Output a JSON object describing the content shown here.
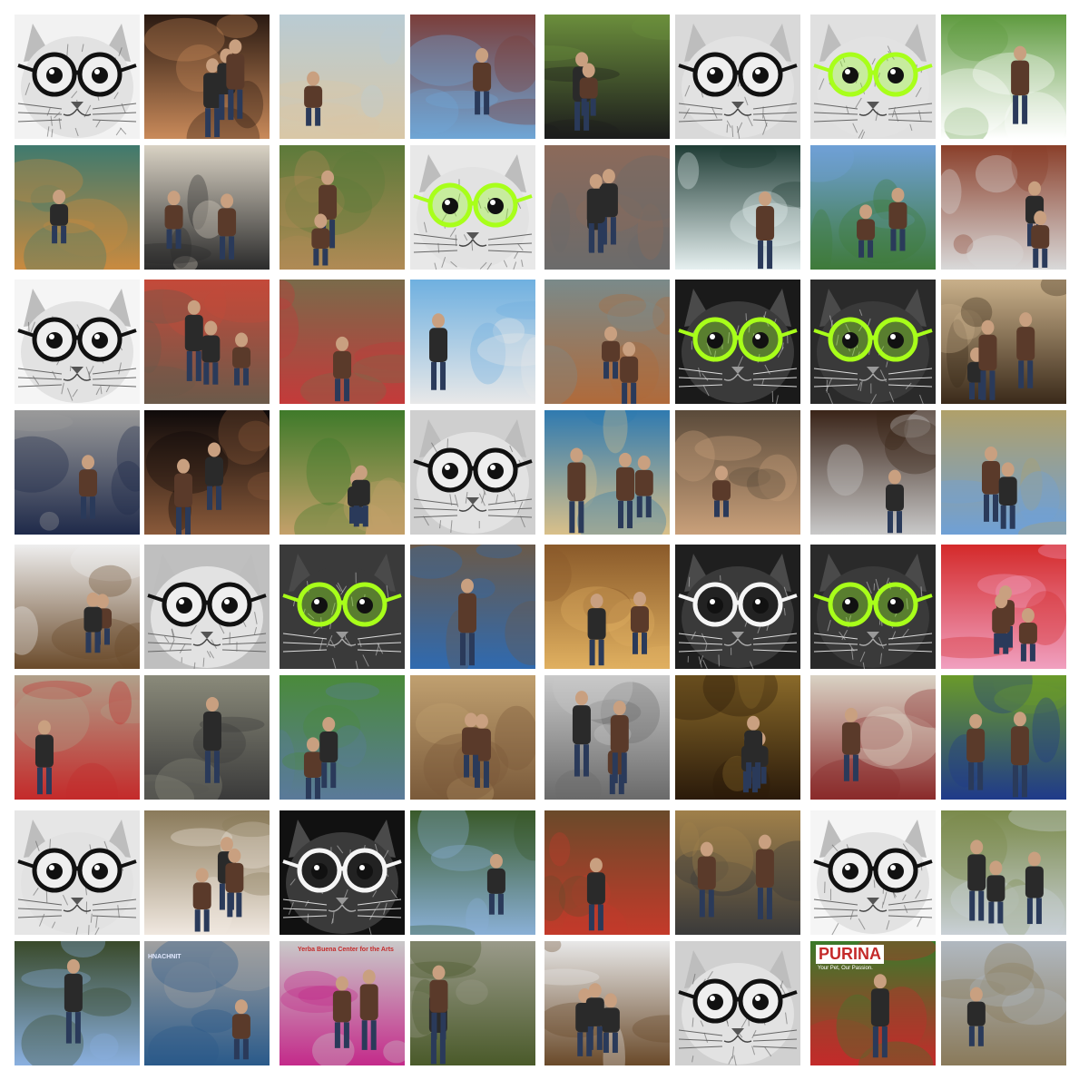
{
  "grid": {
    "rows": 8,
    "cols": 8,
    "background": "#ffffff"
  },
  "tiles": [
    {
      "kind": "cat",
      "scene": "cat-portrait",
      "glasses": "black",
      "colors": [
        "#f2f2f2",
        "#2b2b2b"
      ]
    },
    {
      "kind": "photo",
      "scene": "people-party-night",
      "colors": [
        "#2a1a12",
        "#c98a5a"
      ]
    },
    {
      "kind": "photo",
      "scene": "dog-running-beach",
      "colors": [
        "#b9cbd3",
        "#d9c7a6"
      ]
    },
    {
      "kind": "photo",
      "scene": "woman-and-boy-by-brick-wall",
      "colors": [
        "#7b3e3a",
        "#6fa6d6"
      ]
    },
    {
      "kind": "photo",
      "scene": "two-black-horses-on-grass",
      "colors": [
        "#6b8e3c",
        "#1c1c1c"
      ]
    },
    {
      "kind": "cat",
      "scene": "cat-portrait",
      "glasses": "black",
      "colors": [
        "#d9d9d9",
        "#2f2f2f"
      ]
    },
    {
      "kind": "cat",
      "scene": "cat-portrait",
      "glasses": "lime",
      "colors": [
        "#e0e0e0",
        "#9bff1a"
      ]
    },
    {
      "kind": "photo",
      "scene": "kids-soccer-goal",
      "colors": [
        "#5e9a3e",
        "#ffffff"
      ]
    },
    {
      "kind": "photo",
      "scene": "fluffy-dogs-on-blanket",
      "colors": [
        "#3f7a6e",
        "#c98a3f"
      ]
    },
    {
      "kind": "photo",
      "scene": "couple-on-street",
      "colors": [
        "#d9d2c4",
        "#2b2b2b"
      ]
    },
    {
      "kind": "photo",
      "scene": "football-team-practice",
      "colors": [
        "#5c7a3a",
        "#b08a55"
      ]
    },
    {
      "kind": "cat",
      "scene": "cat-portrait",
      "glasses": "lime",
      "colors": [
        "#e8e8e8",
        "#88ff00"
      ]
    },
    {
      "kind": "photo",
      "scene": "two-people-by-brick-building",
      "colors": [
        "#8c6a5a",
        "#6b6b6b"
      ]
    },
    {
      "kind": "photo",
      "scene": "wakeboarder-wave",
      "colors": [
        "#1f3c35",
        "#e6f0f0"
      ]
    },
    {
      "kind": "photo",
      "scene": "skateboarder-park",
      "colors": [
        "#6fa0d6",
        "#3f7a3a"
      ]
    },
    {
      "kind": "photo",
      "scene": "person-hairnet-mask",
      "colors": [
        "#8a3f2a",
        "#d9d9d9"
      ]
    },
    {
      "kind": "cat",
      "scene": "cat-portrait",
      "glasses": "black",
      "colors": [
        "#f5f5f5",
        "#1a1a1a"
      ]
    },
    {
      "kind": "photo",
      "scene": "carnival-street",
      "colors": [
        "#c44a3a",
        "#6b5a4a"
      ]
    },
    {
      "kind": "photo",
      "scene": "painter-at-easel",
      "colors": [
        "#7a6a4a",
        "#c43a3a"
      ]
    },
    {
      "kind": "photo",
      "scene": "climbing-wall-water",
      "colors": [
        "#6fb0e0",
        "#e8e8e8"
      ]
    },
    {
      "kind": "photo",
      "scene": "dog-in-surf",
      "colors": [
        "#7a8a8a",
        "#b06a3a"
      ]
    },
    {
      "kind": "cat",
      "scene": "cat-portrait",
      "glasses": "lime",
      "colors": [
        "#1a1a1a",
        "#aaff00"
      ]
    },
    {
      "kind": "cat",
      "scene": "cat-portrait",
      "glasses": "lime",
      "colors": [
        "#2a2a2a",
        "#9bff1a"
      ]
    },
    {
      "kind": "photo",
      "scene": "two-dogs-dirt",
      "colors": [
        "#c9b08a",
        "#3a2a1a"
      ]
    },
    {
      "kind": "photo",
      "scene": "man-walking-pavement",
      "colors": [
        "#9a9a9a",
        "#1f2a4a"
      ]
    },
    {
      "kind": "photo",
      "scene": "musician-stage",
      "colors": [
        "#0f0a0a",
        "#8a5a3a"
      ]
    },
    {
      "kind": "photo",
      "scene": "dog-with-stick-grass",
      "colors": [
        "#3f7a2a",
        "#c4a06a"
      ]
    },
    {
      "kind": "cat",
      "scene": "cat-portrait",
      "glasses": "black",
      "colors": [
        "#cfcfcf",
        "#202020"
      ]
    },
    {
      "kind": "photo",
      "scene": "wakeboarder-jump-lake",
      "colors": [
        "#2f7ab0",
        "#d9c08a"
      ]
    },
    {
      "kind": "photo",
      "scene": "bmx-indoor-ramp",
      "colors": [
        "#5a4a3a",
        "#c9a07a"
      ]
    },
    {
      "kind": "photo",
      "scene": "woman-smoking-handbag",
      "colors": [
        "#3a2418",
        "#c9c9c9"
      ]
    },
    {
      "kind": "photo",
      "scene": "football-kicking-field",
      "colors": [
        "#b0a06a",
        "#6fa0d6"
      ]
    },
    {
      "kind": "photo",
      "scene": "sled-dogs-snow",
      "colors": [
        "#eeeeee",
        "#6a4a2a"
      ]
    },
    {
      "kind": "cat",
      "scene": "cat-portrait",
      "glasses": "black",
      "colors": [
        "#bfbfbf",
        "#1a1a1a"
      ]
    },
    {
      "kind": "cat",
      "scene": "cat-portrait",
      "glasses": "lime",
      "colors": [
        "#3a3a3a",
        "#8aff2a"
      ]
    },
    {
      "kind": "photo",
      "scene": "crowd-woman-blue-top",
      "colors": [
        "#6a5a4a",
        "#2f6ab0"
      ]
    },
    {
      "kind": "photo",
      "scene": "cafe-interior",
      "colors": [
        "#8a5a2a",
        "#e0b060"
      ]
    },
    {
      "kind": "cat",
      "scene": "cat-portrait",
      "glasses": "white",
      "colors": [
        "#1f1f1f",
        "#ffffff"
      ]
    },
    {
      "kind": "cat",
      "scene": "cat-portrait",
      "glasses": "lime",
      "colors": [
        "#2a2a2a",
        "#aaff00"
      ]
    },
    {
      "kind": "photo",
      "scene": "child-on-red-slide",
      "colors": [
        "#d42a2a",
        "#f0a0c0"
      ]
    },
    {
      "kind": "photo",
      "scene": "street-bull-run",
      "colors": [
        "#b0a08a",
        "#c42a2a"
      ]
    },
    {
      "kind": "photo",
      "scene": "woman-walking-street",
      "colors": [
        "#8a8a7a",
        "#3a3a3a"
      ]
    },
    {
      "kind": "photo",
      "scene": "man-kneeling-with-fish",
      "colors": [
        "#4a8a3a",
        "#5a7a9a"
      ]
    },
    {
      "kind": "photo",
      "scene": "rock-climber",
      "colors": [
        "#c0a070",
        "#7a5a3a"
      ]
    },
    {
      "kind": "photo",
      "scene": "skateboarder-air",
      "colors": [
        "#c9c9c9",
        "#6a6a6a"
      ]
    },
    {
      "kind": "photo",
      "scene": "dogs-swimming-brown-water",
      "colors": [
        "#8a6a2a",
        "#2a1a0a"
      ]
    },
    {
      "kind": "photo",
      "scene": "two-teens-talking",
      "colors": [
        "#d9d2c4",
        "#8a2a2a"
      ]
    },
    {
      "kind": "photo",
      "scene": "soccer-stadium",
      "colors": [
        "#6a9a2a",
        "#1f3a8a"
      ]
    },
    {
      "kind": "cat",
      "scene": "cat-portrait",
      "glasses": "black",
      "colors": [
        "#e6e6e6",
        "#1a1a1a"
      ]
    },
    {
      "kind": "photo",
      "scene": "puppy-on-rug",
      "colors": [
        "#8a7a5a",
        "#f0e8e0"
      ]
    },
    {
      "kind": "cat",
      "scene": "cat-portrait",
      "glasses": "white",
      "colors": [
        "#111111",
        "#f0f0f0"
      ]
    },
    {
      "kind": "photo",
      "scene": "hiker-forest-trail",
      "colors": [
        "#3a5a2a",
        "#8ab0d6"
      ]
    },
    {
      "kind": "photo",
      "scene": "two-men-hawaiian-shirt",
      "colors": [
        "#6a4a2a",
        "#c43a2a"
      ]
    },
    {
      "kind": "photo",
      "scene": "motocross-dirt",
      "colors": [
        "#a0804a",
        "#3a3a3a"
      ]
    },
    {
      "kind": "cat",
      "scene": "cat-portrait",
      "glasses": "black",
      "colors": [
        "#f5f5f5",
        "#000000"
      ]
    },
    {
      "kind": "photo",
      "scene": "grassy-hillside",
      "colors": [
        "#7a8a4a",
        "#c9d0d6"
      ]
    },
    {
      "kind": "photo",
      "scene": "boy-running-blue-shirt",
      "colors": [
        "#3a4a2a",
        "#8ab0e0"
      ]
    },
    {
      "kind": "photo",
      "scene": "shopping-cart-rider",
      "colors": [
        "#a0a0a0",
        "#2a5a8a"
      ],
      "text": "HNACHNIT"
    },
    {
      "kind": "photo",
      "scene": "art-center-entrance",
      "colors": [
        "#c9c9c9",
        "#c42a8a"
      ],
      "text": "Yerba Buena Center for the Arts"
    },
    {
      "kind": "photo",
      "scene": "atv-jump-field",
      "colors": [
        "#9a9a8a",
        "#4a5a2a"
      ]
    },
    {
      "kind": "photo",
      "scene": "dog-jumping-snow",
      "colors": [
        "#e8e8e8",
        "#6a4a2a"
      ]
    },
    {
      "kind": "cat",
      "scene": "cat-portrait",
      "glasses": "black",
      "colors": [
        "#d0d0d0",
        "#111111"
      ]
    },
    {
      "kind": "photo",
      "scene": "dog-agility-purina",
      "colors": [
        "#3a7a2a",
        "#c42a2a"
      ],
      "text": "PURINA",
      "subtext": "Your Pet, Our Passion."
    },
    {
      "kind": "photo",
      "scene": "coastal-cliff-fog",
      "colors": [
        "#b0b8c0",
        "#8a7a5a"
      ]
    }
  ]
}
